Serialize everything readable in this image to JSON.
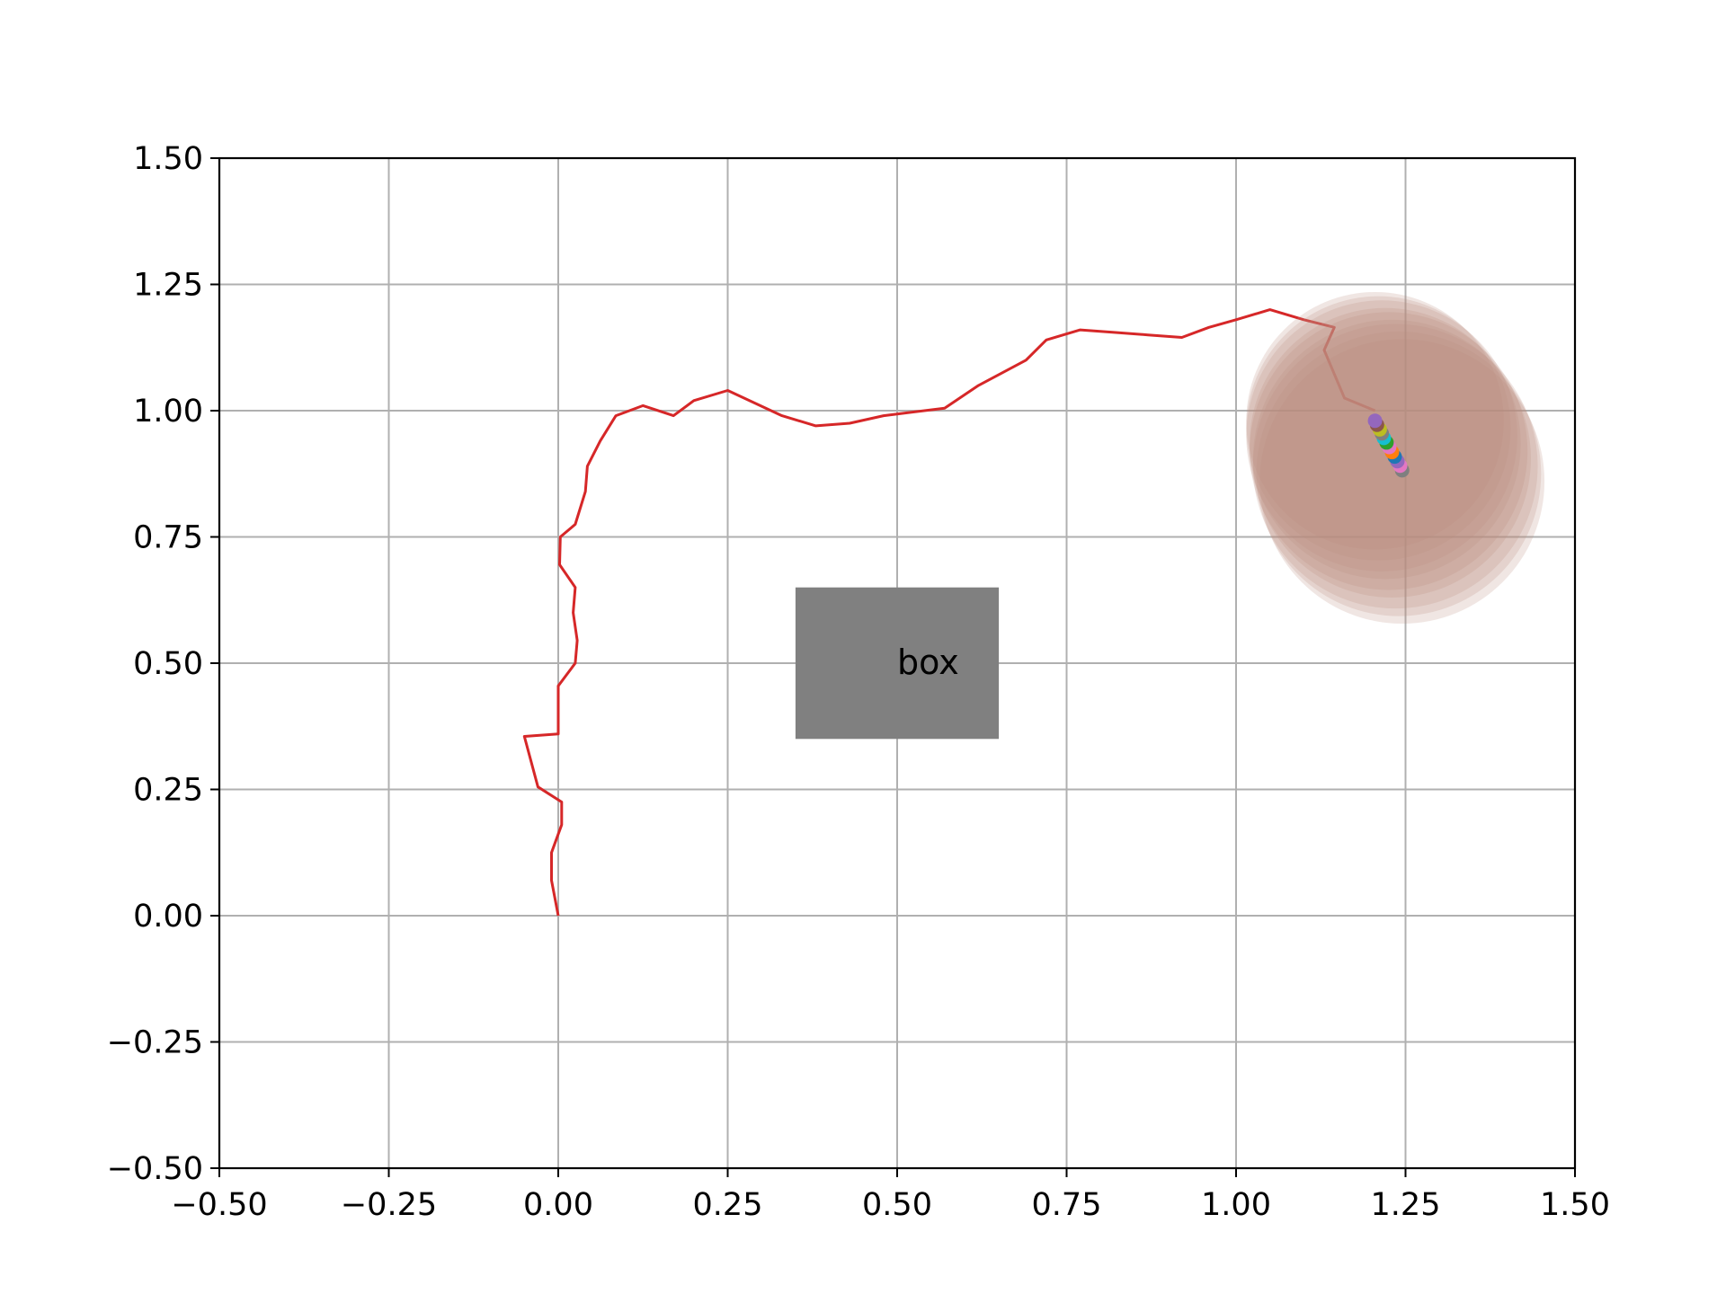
{
  "chart_data": {
    "type": "line",
    "title": "",
    "xlabel": "",
    "ylabel": "",
    "xlim": [
      -0.5,
      1.5
    ],
    "ylim": [
      -0.5,
      1.5
    ],
    "grid": true,
    "legend": "none",
    "x_ticks": [
      "−0.50",
      "−0.25",
      "0.00",
      "0.25",
      "0.50",
      "0.75",
      "1.00",
      "1.25",
      "1.50"
    ],
    "y_ticks": [
      "−0.50",
      "−0.25",
      "0.00",
      "0.25",
      "0.50",
      "0.75",
      "1.00",
      "1.25",
      "1.50"
    ],
    "x_tick_values": [
      -0.5,
      -0.25,
      0,
      0.25,
      0.5,
      0.75,
      1.0,
      1.25,
      1.5
    ],
    "y_tick_values": [
      -0.5,
      -0.25,
      0,
      0.25,
      0.5,
      0.75,
      1.0,
      1.25,
      1.5
    ],
    "obstacle": {
      "label": "box",
      "x": [
        0.35,
        0.65
      ],
      "y": [
        0.35,
        0.65
      ],
      "color": "#808080"
    },
    "trajectory": {
      "color": "#d62728",
      "x": [
        0.0,
        -0.01,
        -0.01,
        0.005,
        0.005,
        -0.03,
        -0.05,
        0.0,
        0.0,
        0.025,
        0.028,
        0.022,
        0.025,
        0.002,
        0.003,
        0.025,
        0.04,
        0.043,
        0.062,
        0.085,
        0.125,
        0.17,
        0.2,
        0.25,
        0.33,
        0.38,
        0.43,
        0.48,
        0.57,
        0.62,
        0.69,
        0.72,
        0.77,
        0.82,
        0.87,
        0.92,
        0.96,
        1.0,
        1.05,
        1.1,
        1.145,
        1.13,
        1.16,
        1.205
      ],
      "y": [
        0.0,
        0.07,
        0.125,
        0.18,
        0.225,
        0.255,
        0.355,
        0.36,
        0.455,
        0.5,
        0.545,
        0.6,
        0.65,
        0.695,
        0.75,
        0.775,
        0.84,
        0.89,
        0.94,
        0.99,
        1.01,
        0.99,
        1.02,
        1.04,
        0.99,
        0.97,
        0.975,
        0.99,
        1.005,
        1.05,
        1.1,
        1.14,
        1.16,
        1.155,
        1.15,
        1.145,
        1.165,
        1.18,
        1.2,
        1.18,
        1.165,
        1.12,
        1.025,
        1.0
      ]
    },
    "particles": {
      "x": [
        1.205,
        1.208,
        1.212,
        1.215,
        1.218,
        1.222,
        1.226,
        1.23,
        1.234,
        1.238,
        1.242,
        1.245
      ],
      "y": [
        0.98,
        0.972,
        0.963,
        0.955,
        0.946,
        0.937,
        0.928,
        0.918,
        0.909,
        0.9,
        0.891,
        0.882
      ],
      "colors": [
        "#9467bd",
        "#8c564b",
        "#bcbd22",
        "#7f7f7f",
        "#17becf",
        "#2ca02c",
        "#e377c2",
        "#ff7f0e",
        "#1f77b4",
        "#9467bd",
        "#e377c2",
        "#7f7f7f"
      ]
    },
    "uncertainty": {
      "color": "#bc8f80",
      "x": [
        1.205,
        1.21,
        1.215,
        1.22,
        1.225,
        1.23,
        1.235,
        1.24,
        1.245
      ],
      "y": [
        0.98,
        0.965,
        0.95,
        0.935,
        0.92,
        0.905,
        0.89,
        0.875,
        0.86
      ],
      "radius": [
        0.19,
        0.195,
        0.2,
        0.2,
        0.205,
        0.205,
        0.21,
        0.21,
        0.21
      ]
    }
  }
}
